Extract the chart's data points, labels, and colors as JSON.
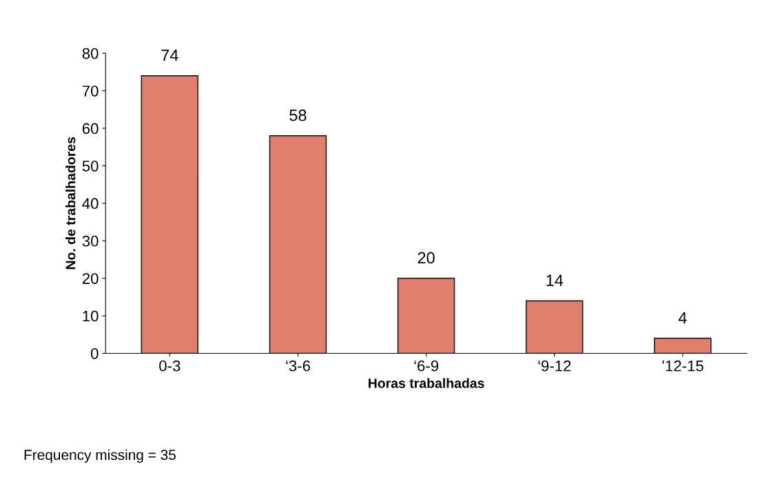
{
  "chart_data": {
    "type": "bar",
    "xlabel": "Horas trabalhadas",
    "ylabel": "No. de trabalhadores",
    "categories": [
      "0-3",
      "‘3-6",
      "‘6-9",
      "‘9-12",
      "’12-15"
    ],
    "values": [
      74,
      58,
      20,
      14,
      4
    ],
    "color": "#e07f6c",
    "ylim": [
      0,
      80
    ],
    "yticks": [
      0,
      10,
      20,
      30,
      40,
      50,
      60,
      70,
      80
    ],
    "data_labels": true,
    "grid": false,
    "annotations": [
      "Frequency missing = 35"
    ]
  }
}
